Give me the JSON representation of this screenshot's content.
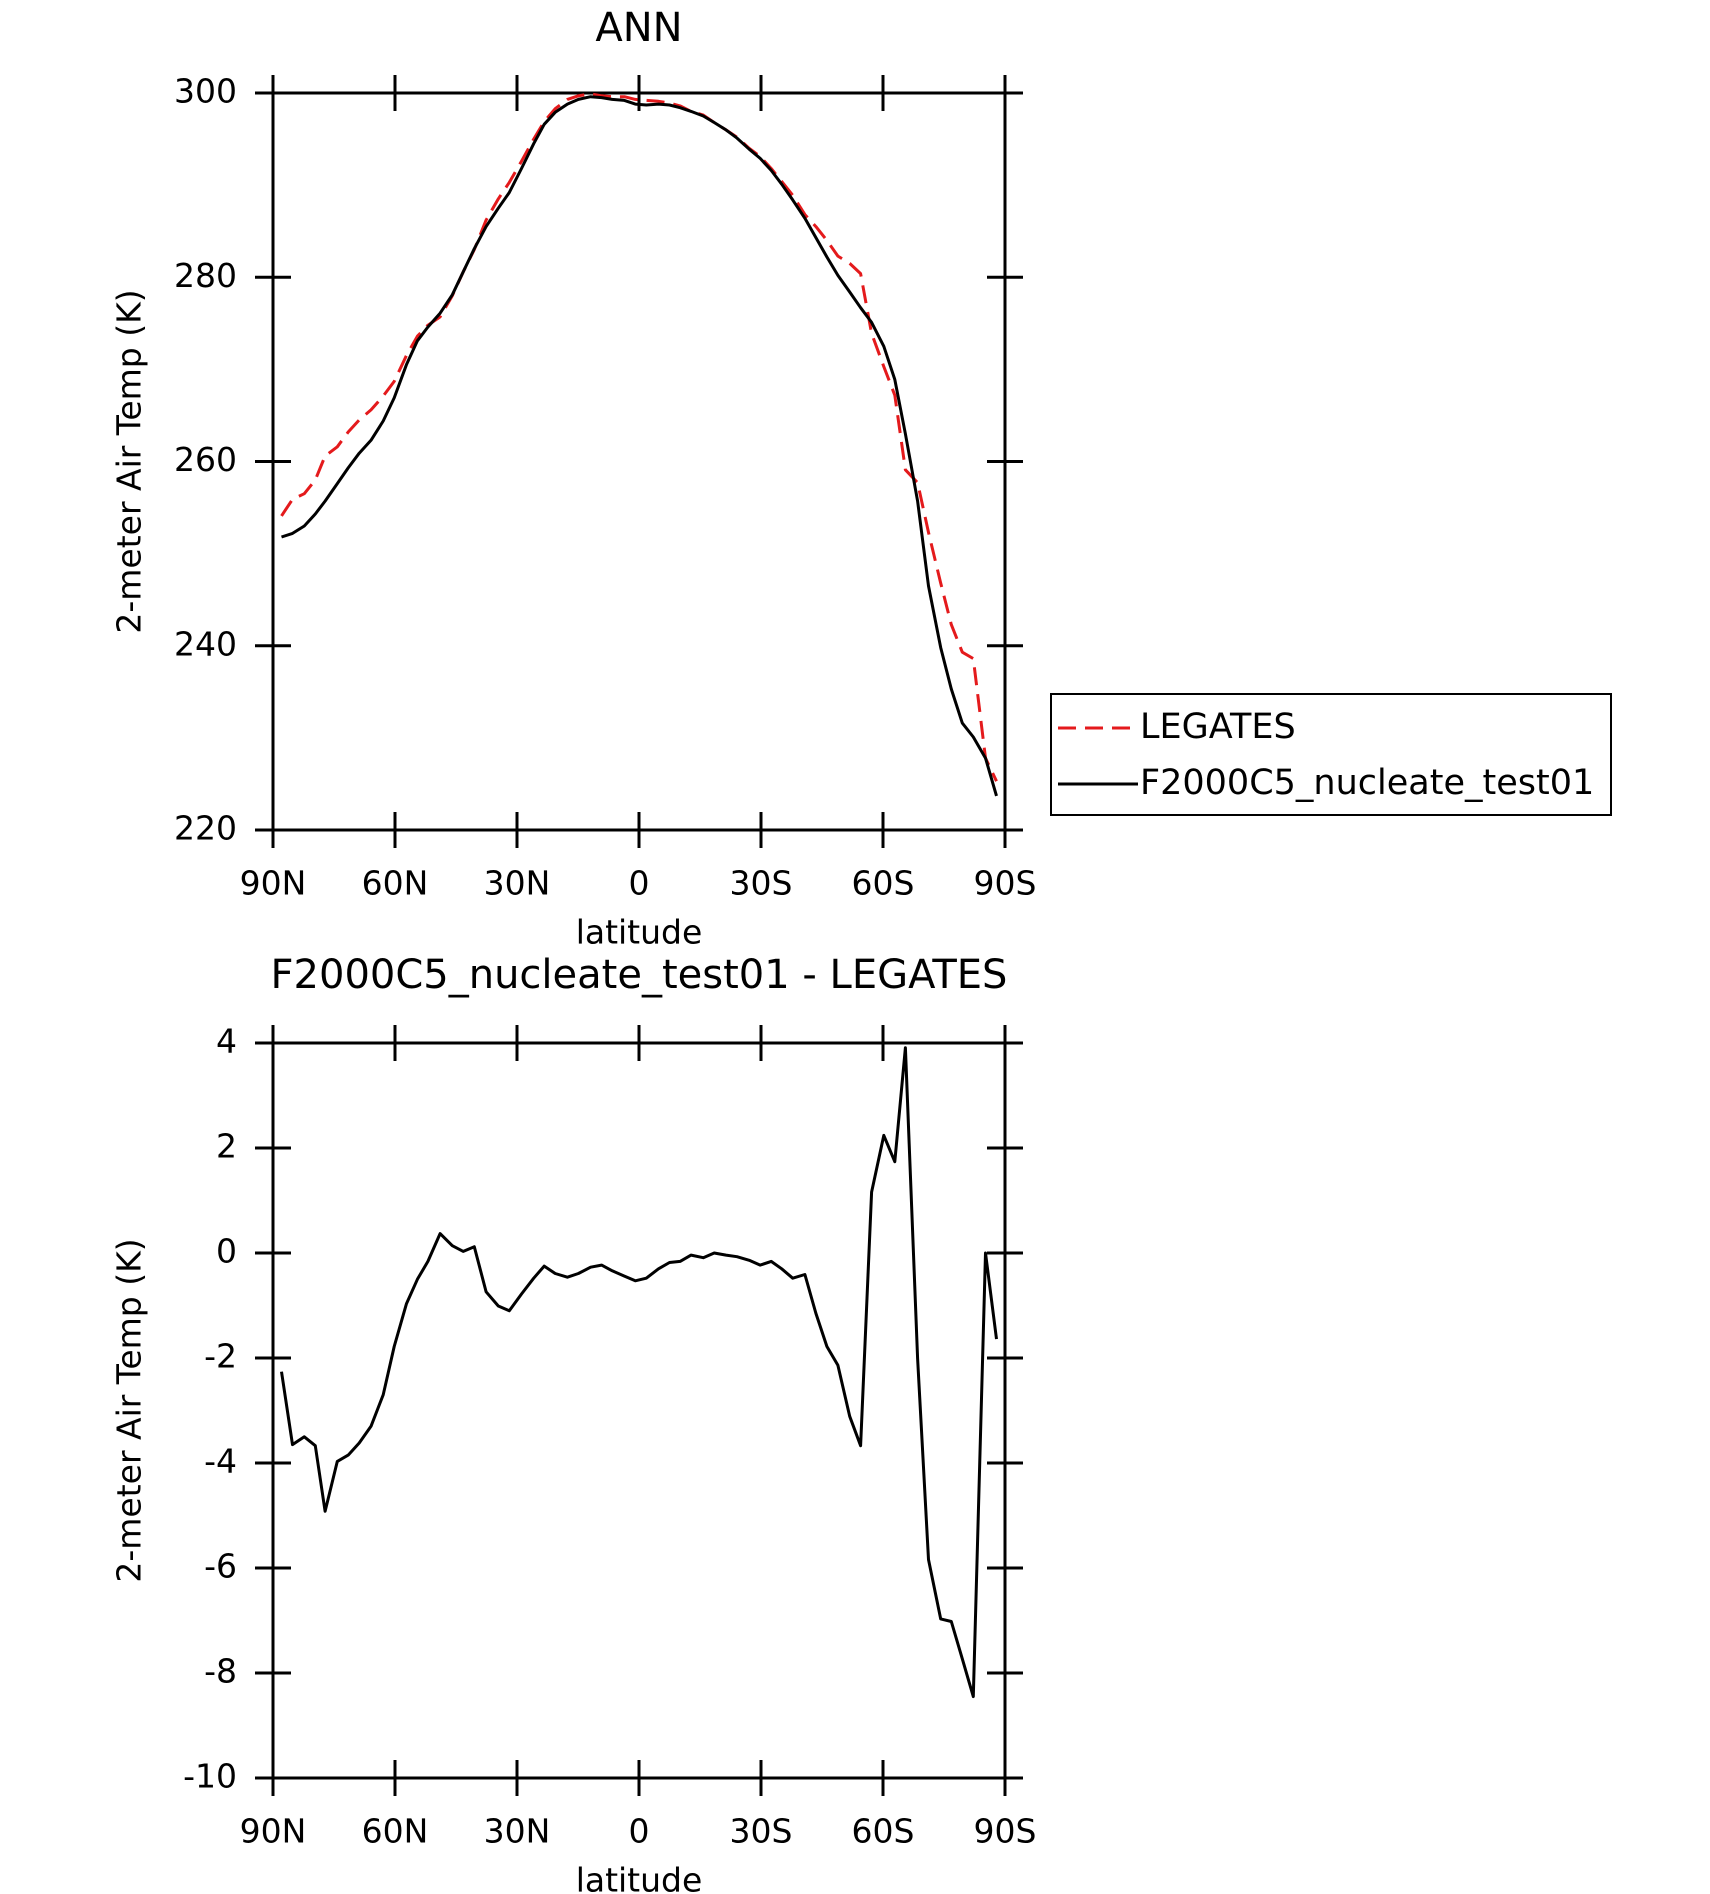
{
  "chart_data": [
    {
      "type": "line",
      "title": "ANN",
      "x_label": "latitude",
      "y_label": "2-meter Air Temp (K)",
      "x": [
        87.9,
        85.2,
        82.3,
        79.6,
        77.2,
        74.2,
        71.5,
        68.8,
        65.9,
        62.9,
        60.2,
        57.2,
        54.5,
        51.9,
        48.9,
        45.9,
        43.2,
        40.5,
        37.6,
        34.6,
        31.9,
        28.9,
        25.9,
        23.3,
        20.6,
        17.6,
        14.9,
        11.9,
        9.2,
        6.6,
        3.6,
        0.9,
        -1.8,
        -4.8,
        -7.5,
        -10.1,
        -12.8,
        -15.8,
        -18.5,
        -21.4,
        -24.1,
        -27.1,
        -29.8,
        -32.5,
        -35.1,
        -37.8,
        -40.8,
        -43.5,
        -46.2,
        -48.9,
        -51.8,
        -54.5,
        -57.2,
        -60.2,
        -62.9,
        -65.5,
        -68.5,
        -71.2,
        -74.2,
        -76.8,
        -79.5,
        -82.2,
        -85.2,
        -87.9
      ],
      "series": [
        {
          "name": "LEGATES",
          "color": "#e41a1c",
          "dash": true,
          "values": [
            254.1,
            255.9,
            256.5,
            258.0,
            260.6,
            261.6,
            263.2,
            264.5,
            265.6,
            267.1,
            268.7,
            271.5,
            273.6,
            274.8,
            275.7,
            278.0,
            280.6,
            283.0,
            286.2,
            288.5,
            290.3,
            292.6,
            295.0,
            296.9,
            298.3,
            299.3,
            299.7,
            299.9,
            299.7,
            299.6,
            299.6,
            299.3,
            299.2,
            299.1,
            298.9,
            298.6,
            298.0,
            297.6,
            296.8,
            296.0,
            295.2,
            294.0,
            293.1,
            291.8,
            290.4,
            288.9,
            286.8,
            285.5,
            284.0,
            282.3,
            281.5,
            280.4,
            273.9,
            270.3,
            267.2,
            259.1,
            257.7,
            252.3,
            246.8,
            242.3,
            239.3,
            238.6,
            227.8,
            225.3
          ]
        },
        {
          "name": "F2000C5_nucleate_test01",
          "color": "#000000",
          "dash": false,
          "values": [
            251.8,
            252.2,
            253.0,
            254.3,
            255.7,
            257.6,
            259.3,
            260.9,
            262.3,
            264.4,
            266.9,
            270.5,
            273.1,
            274.6,
            276.1,
            278.1,
            280.6,
            283.1,
            285.5,
            287.5,
            289.2,
            291.8,
            294.5,
            296.6,
            297.9,
            298.8,
            299.3,
            299.6,
            299.5,
            299.3,
            299.2,
            298.8,
            298.7,
            298.8,
            298.7,
            298.4,
            298.0,
            297.5,
            296.8,
            296.0,
            295.1,
            293.9,
            292.9,
            291.6,
            290.1,
            288.4,
            286.4,
            284.3,
            282.2,
            280.2,
            278.4,
            276.7,
            275.1,
            272.5,
            268.9,
            263.0,
            255.7,
            246.5,
            239.8,
            235.3,
            231.6,
            230.1,
            227.8,
            223.7
          ]
        }
      ],
      "xlim": [
        90,
        -90
      ],
      "xticks": [
        {
          "value": 90,
          "label": "90N"
        },
        {
          "value": 60,
          "label": "60N"
        },
        {
          "value": 30,
          "label": "30N"
        },
        0,
        {
          "value": -30,
          "label": "30S"
        },
        {
          "value": -60,
          "label": "60S"
        },
        {
          "value": -90,
          "label": "90S"
        }
      ],
      "ylim": [
        220,
        300
      ],
      "yticks": [
        220,
        240,
        260,
        280,
        300
      ],
      "legend": "right"
    },
    {
      "type": "line",
      "title": "F2000C5_nucleate_test01 - LEGATES",
      "x_label": "latitude",
      "y_label": "2-meter Air Temp (K)",
      "x": [
        87.9,
        85.2,
        82.3,
        79.6,
        77.2,
        74.2,
        71.5,
        68.8,
        65.9,
        62.9,
        60.2,
        57.2,
        54.5,
        51.9,
        48.9,
        45.9,
        43.2,
        40.5,
        37.6,
        34.6,
        31.9,
        28.9,
        25.9,
        23.3,
        20.6,
        17.6,
        14.9,
        11.9,
        9.2,
        6.6,
        3.6,
        0.9,
        -1.8,
        -4.8,
        -7.5,
        -10.1,
        -12.8,
        -15.8,
        -18.5,
        -21.4,
        -24.1,
        -27.1,
        -29.8,
        -32.5,
        -35.1,
        -37.8,
        -40.8,
        -43.5,
        -46.2,
        -48.9,
        -51.8,
        -54.5,
        -57.2,
        -60.2,
        -62.9,
        -65.5,
        -68.5,
        -71.2,
        -74.2,
        -76.8,
        -79.5,
        -82.2,
        -85.2,
        -87.9
      ],
      "series": [
        {
          "color": "#000000",
          "dash": false,
          "values": [
            -2.26,
            -3.65,
            -3.5,
            -3.67,
            -4.92,
            -3.97,
            -3.85,
            -3.62,
            -3.3,
            -2.7,
            -1.78,
            -0.97,
            -0.5,
            -0.16,
            0.37,
            0.14,
            0.03,
            0.12,
            -0.74,
            -1.01,
            -1.1,
            -0.78,
            -0.48,
            -0.25,
            -0.39,
            -0.46,
            -0.39,
            -0.27,
            -0.23,
            -0.34,
            -0.44,
            -0.53,
            -0.48,
            -0.3,
            -0.18,
            -0.16,
            -0.04,
            -0.09,
            0.0,
            -0.04,
            -0.07,
            -0.14,
            -0.23,
            -0.16,
            -0.3,
            -0.48,
            -0.41,
            -1.15,
            -1.78,
            -2.14,
            -3.11,
            -3.67,
            1.16,
            2.24,
            1.74,
            3.91,
            -2.01,
            -5.84,
            -6.97,
            -7.02,
            -7.73,
            -8.45,
            0.0,
            -1.64
          ]
        }
      ],
      "xlim": [
        90,
        -90
      ],
      "xticks": [
        {
          "value": 90,
          "label": "90N"
        },
        {
          "value": 60,
          "label": "60N"
        },
        {
          "value": 30,
          "label": "30N"
        },
        0,
        {
          "value": -30,
          "label": "30S"
        },
        {
          "value": -60,
          "label": "60S"
        },
        {
          "value": -90,
          "label": "90S"
        }
      ],
      "ylim": [
        -10,
        4
      ],
      "yticks": [
        -10,
        -8,
        -6,
        -4,
        -2,
        0,
        2,
        4
      ]
    }
  ]
}
